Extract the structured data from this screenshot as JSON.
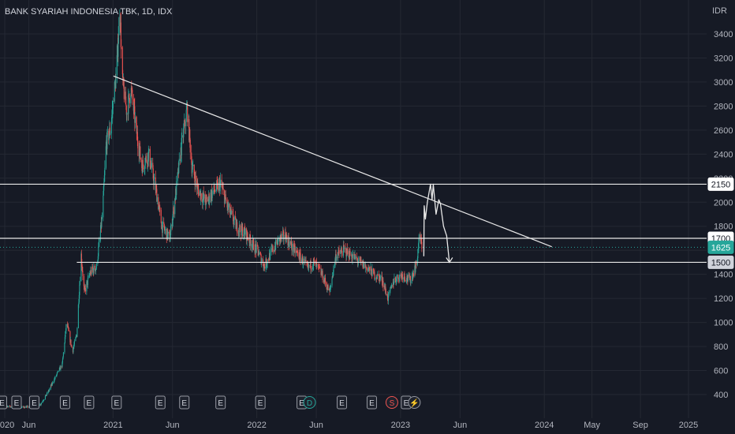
{
  "header": {
    "symbol_title": "BANK SYARIAH INDONESIA TBK, 1D, IDX",
    "currency": "IDR"
  },
  "colors": {
    "background": "#161a25",
    "grid": "#242833",
    "up": "#26a69a",
    "down": "#ef5350",
    "drawing": "#e8e8e8",
    "current_price_badge": "#26a69a"
  },
  "chart_data": {
    "type": "candlestick",
    "title": "BANK SYARIAH INDONESIA TBK, 1D, IDX",
    "ylabel": "IDR",
    "ylim": [
      280,
      3610
    ],
    "x_ticks": [
      {
        "label": "2020",
        "date": "2020-04-01"
      },
      {
        "label": "Jun",
        "date": "2020-06-01"
      },
      {
        "label": "2021",
        "date": "2021-01-01"
      },
      {
        "label": "Jun",
        "date": "2021-06-01"
      },
      {
        "label": "2022",
        "date": "2022-01-01"
      },
      {
        "label": "Jun",
        "date": "2022-06-01"
      },
      {
        "label": "2023",
        "date": "2023-01-01"
      },
      {
        "label": "Jun",
        "date": "2023-06-01"
      },
      {
        "label": "2024",
        "date": "2024-01-01"
      },
      {
        "label": "May",
        "date": "2024-05-01"
      },
      {
        "label": "Sep",
        "date": "2024-09-01"
      },
      {
        "label": "2025",
        "date": "2025-01-01"
      }
    ],
    "y_ticks": [
      400,
      600,
      800,
      1000,
      1200,
      1400,
      1600,
      1800,
      2000,
      2200,
      2400,
      2600,
      2800,
      3000,
      3200,
      3400
    ],
    "price_path": [
      [
        "2020-03-20",
        310
      ],
      [
        "2020-04-15",
        300
      ],
      [
        "2020-05-15",
        295
      ],
      [
        "2020-06-15",
        300
      ],
      [
        "2020-07-01",
        320
      ],
      [
        "2020-07-20",
        420
      ],
      [
        "2020-08-10",
        560
      ],
      [
        "2020-08-25",
        650
      ],
      [
        "2020-09-05",
        1000
      ],
      [
        "2020-09-20",
        760
      ],
      [
        "2020-10-01",
        900
      ],
      [
        "2020-10-12",
        1560
      ],
      [
        "2020-10-20",
        1250
      ],
      [
        "2020-11-05",
        1420
      ],
      [
        "2020-11-20",
        1460
      ],
      [
        "2020-12-05",
        1900
      ],
      [
        "2020-12-15",
        2500
      ],
      [
        "2020-12-25",
        2600
      ],
      [
        "2021-01-10",
        3100
      ],
      [
        "2021-01-18",
        3620
      ],
      [
        "2021-01-25",
        3000
      ],
      [
        "2021-02-05",
        2750
      ],
      [
        "2021-02-15",
        2950
      ],
      [
        "2021-03-01",
        2600
      ],
      [
        "2021-03-15",
        2300
      ],
      [
        "2021-04-01",
        2400
      ],
      [
        "2021-04-20",
        2100
      ],
      [
        "2021-05-05",
        1800
      ],
      [
        "2021-05-25",
        1700
      ],
      [
        "2021-06-10",
        2100
      ],
      [
        "2021-06-25",
        2500
      ],
      [
        "2021-07-08",
        2780
      ],
      [
        "2021-07-20",
        2300
      ],
      [
        "2021-08-05",
        2100
      ],
      [
        "2021-08-25",
        2000
      ],
      [
        "2021-09-10",
        2080
      ],
      [
        "2021-10-01",
        2150
      ],
      [
        "2021-10-20",
        1950
      ],
      [
        "2021-11-10",
        1800
      ],
      [
        "2021-12-01",
        1750
      ],
      [
        "2022-01-05",
        1580
      ],
      [
        "2022-01-20",
        1470
      ],
      [
        "2022-02-10",
        1600
      ],
      [
        "2022-03-01",
        1700
      ],
      [
        "2022-03-15",
        1720
      ],
      [
        "2022-04-01",
        1620
      ],
      [
        "2022-04-20",
        1550
      ],
      [
        "2022-05-10",
        1450
      ],
      [
        "2022-05-25",
        1500
      ],
      [
        "2022-06-15",
        1400
      ],
      [
        "2022-07-05",
        1250
      ],
      [
        "2022-07-20",
        1550
      ],
      [
        "2022-08-10",
        1600
      ],
      [
        "2022-09-01",
        1550
      ],
      [
        "2022-09-20",
        1500
      ],
      [
        "2022-10-10",
        1450
      ],
      [
        "2022-10-25",
        1400
      ],
      [
        "2022-11-15",
        1360
      ],
      [
        "2022-11-30",
        1200
      ],
      [
        "2022-12-15",
        1350
      ],
      [
        "2023-01-05",
        1400
      ],
      [
        "2023-01-25",
        1350
      ],
      [
        "2023-02-10",
        1480
      ],
      [
        "2023-02-18",
        1720
      ],
      [
        "2023-02-25",
        1625
      ]
    ],
    "horizontal_levels": [
      {
        "price": 2150,
        "label": "2150"
      },
      {
        "price": 1700,
        "label": "1700"
      },
      {
        "price": 1500,
        "label": "1500"
      }
    ],
    "current_price": {
      "price": 1625,
      "label": "1625"
    },
    "trendline": {
      "start": [
        "2021-01-02",
        3050
      ],
      "end": [
        "2024-01-20",
        1630
      ]
    },
    "projection_path": [
      [
        "2023-03-01",
        1550
      ],
      [
        "2023-03-02",
        1970
      ],
      [
        "2023-03-05",
        1860
      ],
      [
        "2023-03-10",
        2000
      ],
      [
        "2023-03-18",
        2150
      ],
      [
        "2023-03-22",
        2020
      ],
      [
        "2023-03-25",
        2150
      ],
      [
        "2023-04-01",
        1900
      ],
      [
        "2023-04-08",
        2020
      ],
      [
        "2023-04-12",
        1990
      ],
      [
        "2023-04-20",
        1800
      ],
      [
        "2023-04-28",
        1720
      ],
      [
        "2023-05-05",
        1500
      ]
    ],
    "event_markers": [
      {
        "label": "E",
        "date": "2020-03-25"
      },
      {
        "label": "E",
        "date": "2020-05-01"
      },
      {
        "label": "E",
        "date": "2020-06-15"
      },
      {
        "label": "E",
        "date": "2020-09-01"
      },
      {
        "label": "E",
        "date": "2020-11-01"
      },
      {
        "label": "E",
        "date": "2021-01-10"
      },
      {
        "label": "E",
        "date": "2021-05-01"
      },
      {
        "label": "E",
        "date": "2021-07-01"
      },
      {
        "label": "E",
        "date": "2021-10-01"
      },
      {
        "label": "E",
        "date": "2022-01-10"
      },
      {
        "label": "E",
        "date": "2022-04-25"
      },
      {
        "label": "D",
        "date": "2022-05-15"
      },
      {
        "label": "E",
        "date": "2022-08-05"
      },
      {
        "label": "E",
        "date": "2022-10-20"
      },
      {
        "label": "S",
        "date": "2022-12-10"
      },
      {
        "label": "E",
        "date": "2023-01-15"
      },
      {
        "label": "⚡",
        "date": "2023-02-05"
      }
    ]
  }
}
